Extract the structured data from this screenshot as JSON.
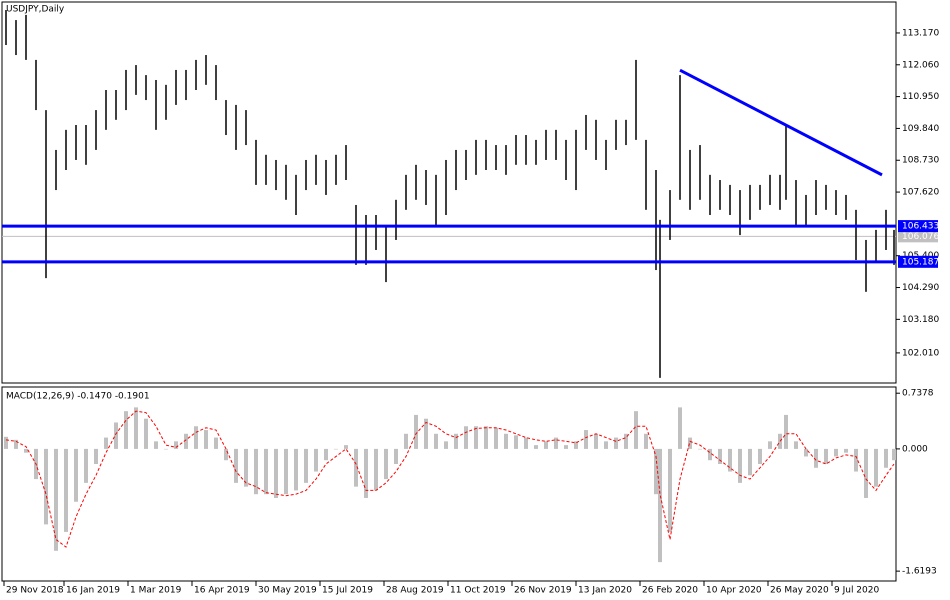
{
  "chart_data": [
    {
      "type": "ohlc",
      "title": "USDJPY,Daily",
      "color": "#000000",
      "x": [
        2,
        7,
        12,
        17,
        22,
        27,
        32,
        37,
        42,
        47,
        52,
        57,
        62,
        67,
        72,
        77,
        82,
        87,
        92,
        97,
        102,
        107,
        112,
        117,
        122,
        127,
        132,
        137,
        142,
        147,
        152,
        157,
        162,
        167,
        172,
        177,
        182,
        187,
        192,
        197,
        202,
        207,
        212,
        217,
        222,
        227,
        232,
        237,
        242,
        247,
        252,
        257,
        262,
        267,
        272,
        277,
        282,
        287,
        292,
        297,
        302,
        307,
        312,
        317,
        322,
        327,
        329,
        334,
        339,
        344,
        349,
        354,
        359,
        364,
        369,
        374,
        379,
        384,
        389,
        392,
        397,
        402,
        407,
        412,
        417,
        422,
        427,
        432,
        437,
        442,
        446
      ],
      "high": [
        113.97,
        113.62,
        113.8,
        112.23,
        110.48,
        109.09,
        109.79,
        109.96,
        109.96,
        110.48,
        111.18,
        111.18,
        111.88,
        112.05,
        111.7,
        111.53,
        111.36,
        111.88,
        111.88,
        112.23,
        112.4,
        112.05,
        110.83,
        110.66,
        110.48,
        109.44,
        108.92,
        108.74,
        108.57,
        108.22,
        108.74,
        108.92,
        108.74,
        108.92,
        109.26,
        107.17,
        106.82,
        106.82,
        106.47,
        107.35,
        108.22,
        108.57,
        108.39,
        108.22,
        108.74,
        109.09,
        109.09,
        109.44,
        109.44,
        109.26,
        109.26,
        109.61,
        109.61,
        109.44,
        109.79,
        109.79,
        109.44,
        109.79,
        110.31,
        110.14,
        109.44,
        110.14,
        110.14,
        112.23,
        109.44,
        108.39,
        106.65,
        107.69,
        111.7,
        109.09,
        109.26,
        108.22,
        108.04,
        107.87,
        107.69,
        107.87,
        107.87,
        108.22,
        108.22,
        109.96,
        108.04,
        107.52,
        108.04,
        107.87,
        107.69,
        107.52,
        107.0,
        105.95,
        106.3,
        107.0,
        106.3
      ],
      "low": [
        112.75,
        112.4,
        112.23,
        110.48,
        104.62,
        107.69,
        108.39,
        108.74,
        108.57,
        109.09,
        109.79,
        110.14,
        110.48,
        111.01,
        110.83,
        109.79,
        110.14,
        110.66,
        110.83,
        111.18,
        111.36,
        110.83,
        109.61,
        109.09,
        109.26,
        107.87,
        107.87,
        107.69,
        107.35,
        106.82,
        107.69,
        107.87,
        107.52,
        107.87,
        108.04,
        105.08,
        105.08,
        105.6,
        104.48,
        105.95,
        107.0,
        107.35,
        107.17,
        106.47,
        106.82,
        107.69,
        108.04,
        108.22,
        108.39,
        108.39,
        108.22,
        108.57,
        108.57,
        108.57,
        108.74,
        108.74,
        108.04,
        107.69,
        109.09,
        108.74,
        108.39,
        109.09,
        109.26,
        109.44,
        107.0,
        104.9,
        101.14,
        105.95,
        107.35,
        107.0,
        107.35,
        106.82,
        107.0,
        106.82,
        106.12,
        106.65,
        107.0,
        107.17,
        107.0,
        107.35,
        106.47,
        106.47,
        106.82,
        107.0,
        106.82,
        106.65,
        105.25,
        104.14,
        105.18,
        105.6,
        105.08
      ],
      "xlim": [
        0,
        447
      ],
      "ylim": [
        100.96,
        114.25
      ],
      "yticks": [
        {
          "value": 113.17,
          "label": "113.170"
        },
        {
          "value": 112.06,
          "label": "112.060"
        },
        {
          "value": 110.95,
          "label": "110.950"
        },
        {
          "value": 109.84,
          "label": "109.840"
        },
        {
          "value": 108.73,
          "label": "108.730"
        },
        {
          "value": 107.62,
          "label": "107.620"
        },
        {
          "value": 105.4,
          "label": "105.400"
        },
        {
          "value": 104.29,
          "label": "104.290"
        },
        {
          "value": 103.18,
          "label": "103.180"
        },
        {
          "value": 102.01,
          "label": "102.010"
        }
      ],
      "levels": [
        {
          "value": 106.433,
          "label": "106.433",
          "color": "#0000ff"
        },
        {
          "value": 105.187,
          "label": "105.187",
          "color": "#0000ff"
        }
      ],
      "last_price": {
        "value": 106.076,
        "label": "106.076",
        "color": "#c0c0c0"
      },
      "trendline": {
        "x": [
          339,
          440
        ],
        "y": [
          111.87,
          108.22
        ],
        "color": "#0000ff"
      }
    },
    {
      "type": "macd",
      "title": "MACD(12,26,9) -0.1470 -0.1901",
      "histogram_color": "#c0c0c0",
      "signal_color": "#ff0000",
      "x": [
        2,
        7,
        12,
        17,
        22,
        27,
        32,
        37,
        42,
        47,
        52,
        57,
        62,
        67,
        72,
        77,
        82,
        87,
        92,
        97,
        102,
        107,
        112,
        117,
        122,
        127,
        132,
        137,
        142,
        147,
        152,
        157,
        162,
        167,
        172,
        177,
        182,
        187,
        192,
        197,
        202,
        207,
        212,
        217,
        222,
        227,
        232,
        237,
        242,
        247,
        252,
        257,
        262,
        267,
        272,
        277,
        282,
        287,
        292,
        297,
        302,
        307,
        312,
        317,
        322,
        327,
        329,
        334,
        339,
        344,
        349,
        354,
        359,
        364,
        369,
        374,
        379,
        384,
        389,
        392,
        397,
        402,
        407,
        412,
        417,
        422,
        427,
        432,
        437,
        442,
        446
      ],
      "histogram": [
        0.16,
        0.12,
        -0.05,
        -0.4,
        -1.0,
        -1.35,
        -1.1,
        -0.7,
        -0.45,
        -0.2,
        0.15,
        0.35,
        0.5,
        0.55,
        0.4,
        0.1,
        0.0,
        0.1,
        0.2,
        0.3,
        0.25,
        0.15,
        -0.15,
        -0.45,
        -0.5,
        -0.6,
        -0.6,
        -0.65,
        -0.6,
        -0.55,
        -0.45,
        -0.3,
        -0.15,
        0.0,
        0.05,
        -0.5,
        -0.65,
        -0.55,
        -0.4,
        -0.2,
        0.2,
        0.45,
        0.4,
        0.2,
        0.1,
        0.2,
        0.3,
        0.3,
        0.3,
        0.28,
        0.2,
        0.18,
        0.15,
        0.05,
        0.1,
        0.15,
        0.05,
        0.1,
        0.25,
        0.2,
        0.1,
        0.15,
        0.2,
        0.5,
        0.2,
        -0.6,
        -1.5,
        -1.1,
        0.55,
        0.15,
        0.0,
        -0.15,
        -0.2,
        -0.3,
        -0.45,
        -0.35,
        -0.2,
        0.1,
        0.2,
        0.45,
        0.1,
        -0.1,
        -0.25,
        -0.2,
        -0.1,
        -0.05,
        -0.3,
        -0.65,
        -0.5,
        -0.25,
        -0.15
      ],
      "signal": [
        0.12,
        0.1,
        0.03,
        -0.2,
        -0.6,
        -1.2,
        -1.3,
        -0.9,
        -0.6,
        -0.35,
        -0.05,
        0.2,
        0.38,
        0.5,
        0.48,
        0.3,
        0.05,
        0.02,
        0.12,
        0.22,
        0.28,
        0.25,
        0.0,
        -0.3,
        -0.45,
        -0.5,
        -0.58,
        -0.6,
        -0.62,
        -0.6,
        -0.55,
        -0.4,
        -0.2,
        -0.1,
        0.0,
        -0.2,
        -0.55,
        -0.55,
        -0.45,
        -0.3,
        -0.1,
        0.2,
        0.35,
        0.3,
        0.2,
        0.15,
        0.22,
        0.27,
        0.28,
        0.28,
        0.25,
        0.2,
        0.15,
        0.12,
        0.1,
        0.12,
        0.1,
        0.08,
        0.15,
        0.2,
        0.15,
        0.1,
        0.15,
        0.3,
        0.3,
        -0.1,
        -0.6,
        -1.2,
        -0.4,
        0.1,
        0.05,
        -0.05,
        -0.15,
        -0.25,
        -0.35,
        -0.4,
        -0.25,
        -0.1,
        0.1,
        0.2,
        0.2,
        0.0,
        -0.15,
        -0.2,
        -0.12,
        -0.08,
        -0.1,
        -0.4,
        -0.55,
        -0.35,
        -0.2
      ],
      "xlim": [
        0,
        447
      ],
      "ylim": [
        -1.75,
        0.82
      ],
      "yticks": [
        0.7378,
        {
          "value": 0,
          "label": "0.000"
        },
        -1.6193
      ],
      "xticks": [
        {
          "value": 1,
          "label": "29 Nov 2018"
        },
        {
          "value": 31,
          "label": "16 Jan 2019"
        },
        {
          "value": 63,
          "label": "1 Mar 2019"
        },
        {
          "value": 95,
          "label": "16 Apr 2019"
        },
        {
          "value": 127,
          "label": "30 May 2019"
        },
        {
          "value": 159,
          "label": "15 Jul 2019"
        },
        {
          "value": 191,
          "label": "28 Aug 2019"
        },
        {
          "value": 223,
          "label": "11 Oct 2019"
        },
        {
          "value": 255,
          "label": "26 Nov 2019"
        },
        {
          "value": 287,
          "label": "13 Jan 2020"
        },
        {
          "value": 319,
          "label": "26 Feb 2020"
        },
        {
          "value": 351,
          "label": "10 Apr 2020"
        },
        {
          "value": 383,
          "label": "26 May 2020"
        },
        {
          "value": 415,
          "label": "9 Jul 2020"
        }
      ]
    }
  ]
}
